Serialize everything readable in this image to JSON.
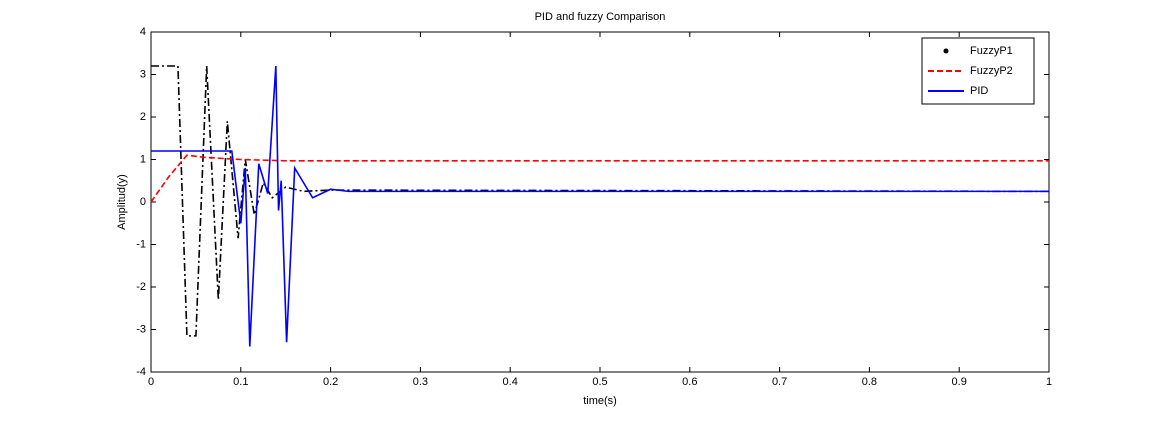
{
  "chart_data": {
    "type": "line",
    "title": "PID and fuzzy Comparison",
    "xlabel": "time(s)",
    "ylabel": "Amplitud(y)",
    "xlim": [
      0,
      1
    ],
    "ylim": [
      -4,
      4
    ],
    "xticks": [
      0,
      0.1,
      0.2,
      0.3,
      0.4,
      0.5,
      0.6,
      0.7,
      0.8,
      0.9,
      1
    ],
    "yticks": [
      -4,
      -3,
      -2,
      -1,
      0,
      1,
      2,
      3,
      4
    ],
    "legend": "upper right",
    "series": [
      {
        "name": "FuzzyP1",
        "color": "#000000",
        "linestyle": "-.",
        "marker": ".",
        "x": [
          0,
          0.03,
          0.04,
          0.05,
          0.062,
          0.075,
          0.085,
          0.097,
          0.105,
          0.115,
          0.125,
          0.135,
          0.15,
          0.17,
          0.2,
          1
        ],
        "values": [
          3.2,
          3.2,
          -3.15,
          -3.15,
          3.2,
          -2.3,
          1.9,
          -0.85,
          1.0,
          -0.3,
          0.45,
          0.1,
          0.35,
          0.25,
          0.28,
          0.25
        ]
      },
      {
        "name": "FuzzyP2",
        "color": "#ff0000",
        "linestyle": "--",
        "x": [
          0,
          0.02,
          0.04,
          0.06,
          0.1,
          0.15,
          1
        ],
        "values": [
          0,
          0.6,
          1.1,
          1.05,
          1.0,
          0.97,
          0.97
        ]
      },
      {
        "name": "PID",
        "color": "#0000ff",
        "linestyle": "-",
        "x": [
          0,
          0.09,
          0.1,
          0.105,
          0.11,
          0.12,
          0.13,
          0.139,
          0.142,
          0.145,
          0.151,
          0.16,
          0.18,
          0.2,
          0.22,
          1
        ],
        "values": [
          1.2,
          1.2,
          -0.5,
          0.8,
          -3.4,
          0.9,
          0.2,
          3.2,
          -0.2,
          0.5,
          -3.3,
          0.8,
          0.1,
          0.3,
          0.25,
          0.25
        ]
      }
    ]
  }
}
